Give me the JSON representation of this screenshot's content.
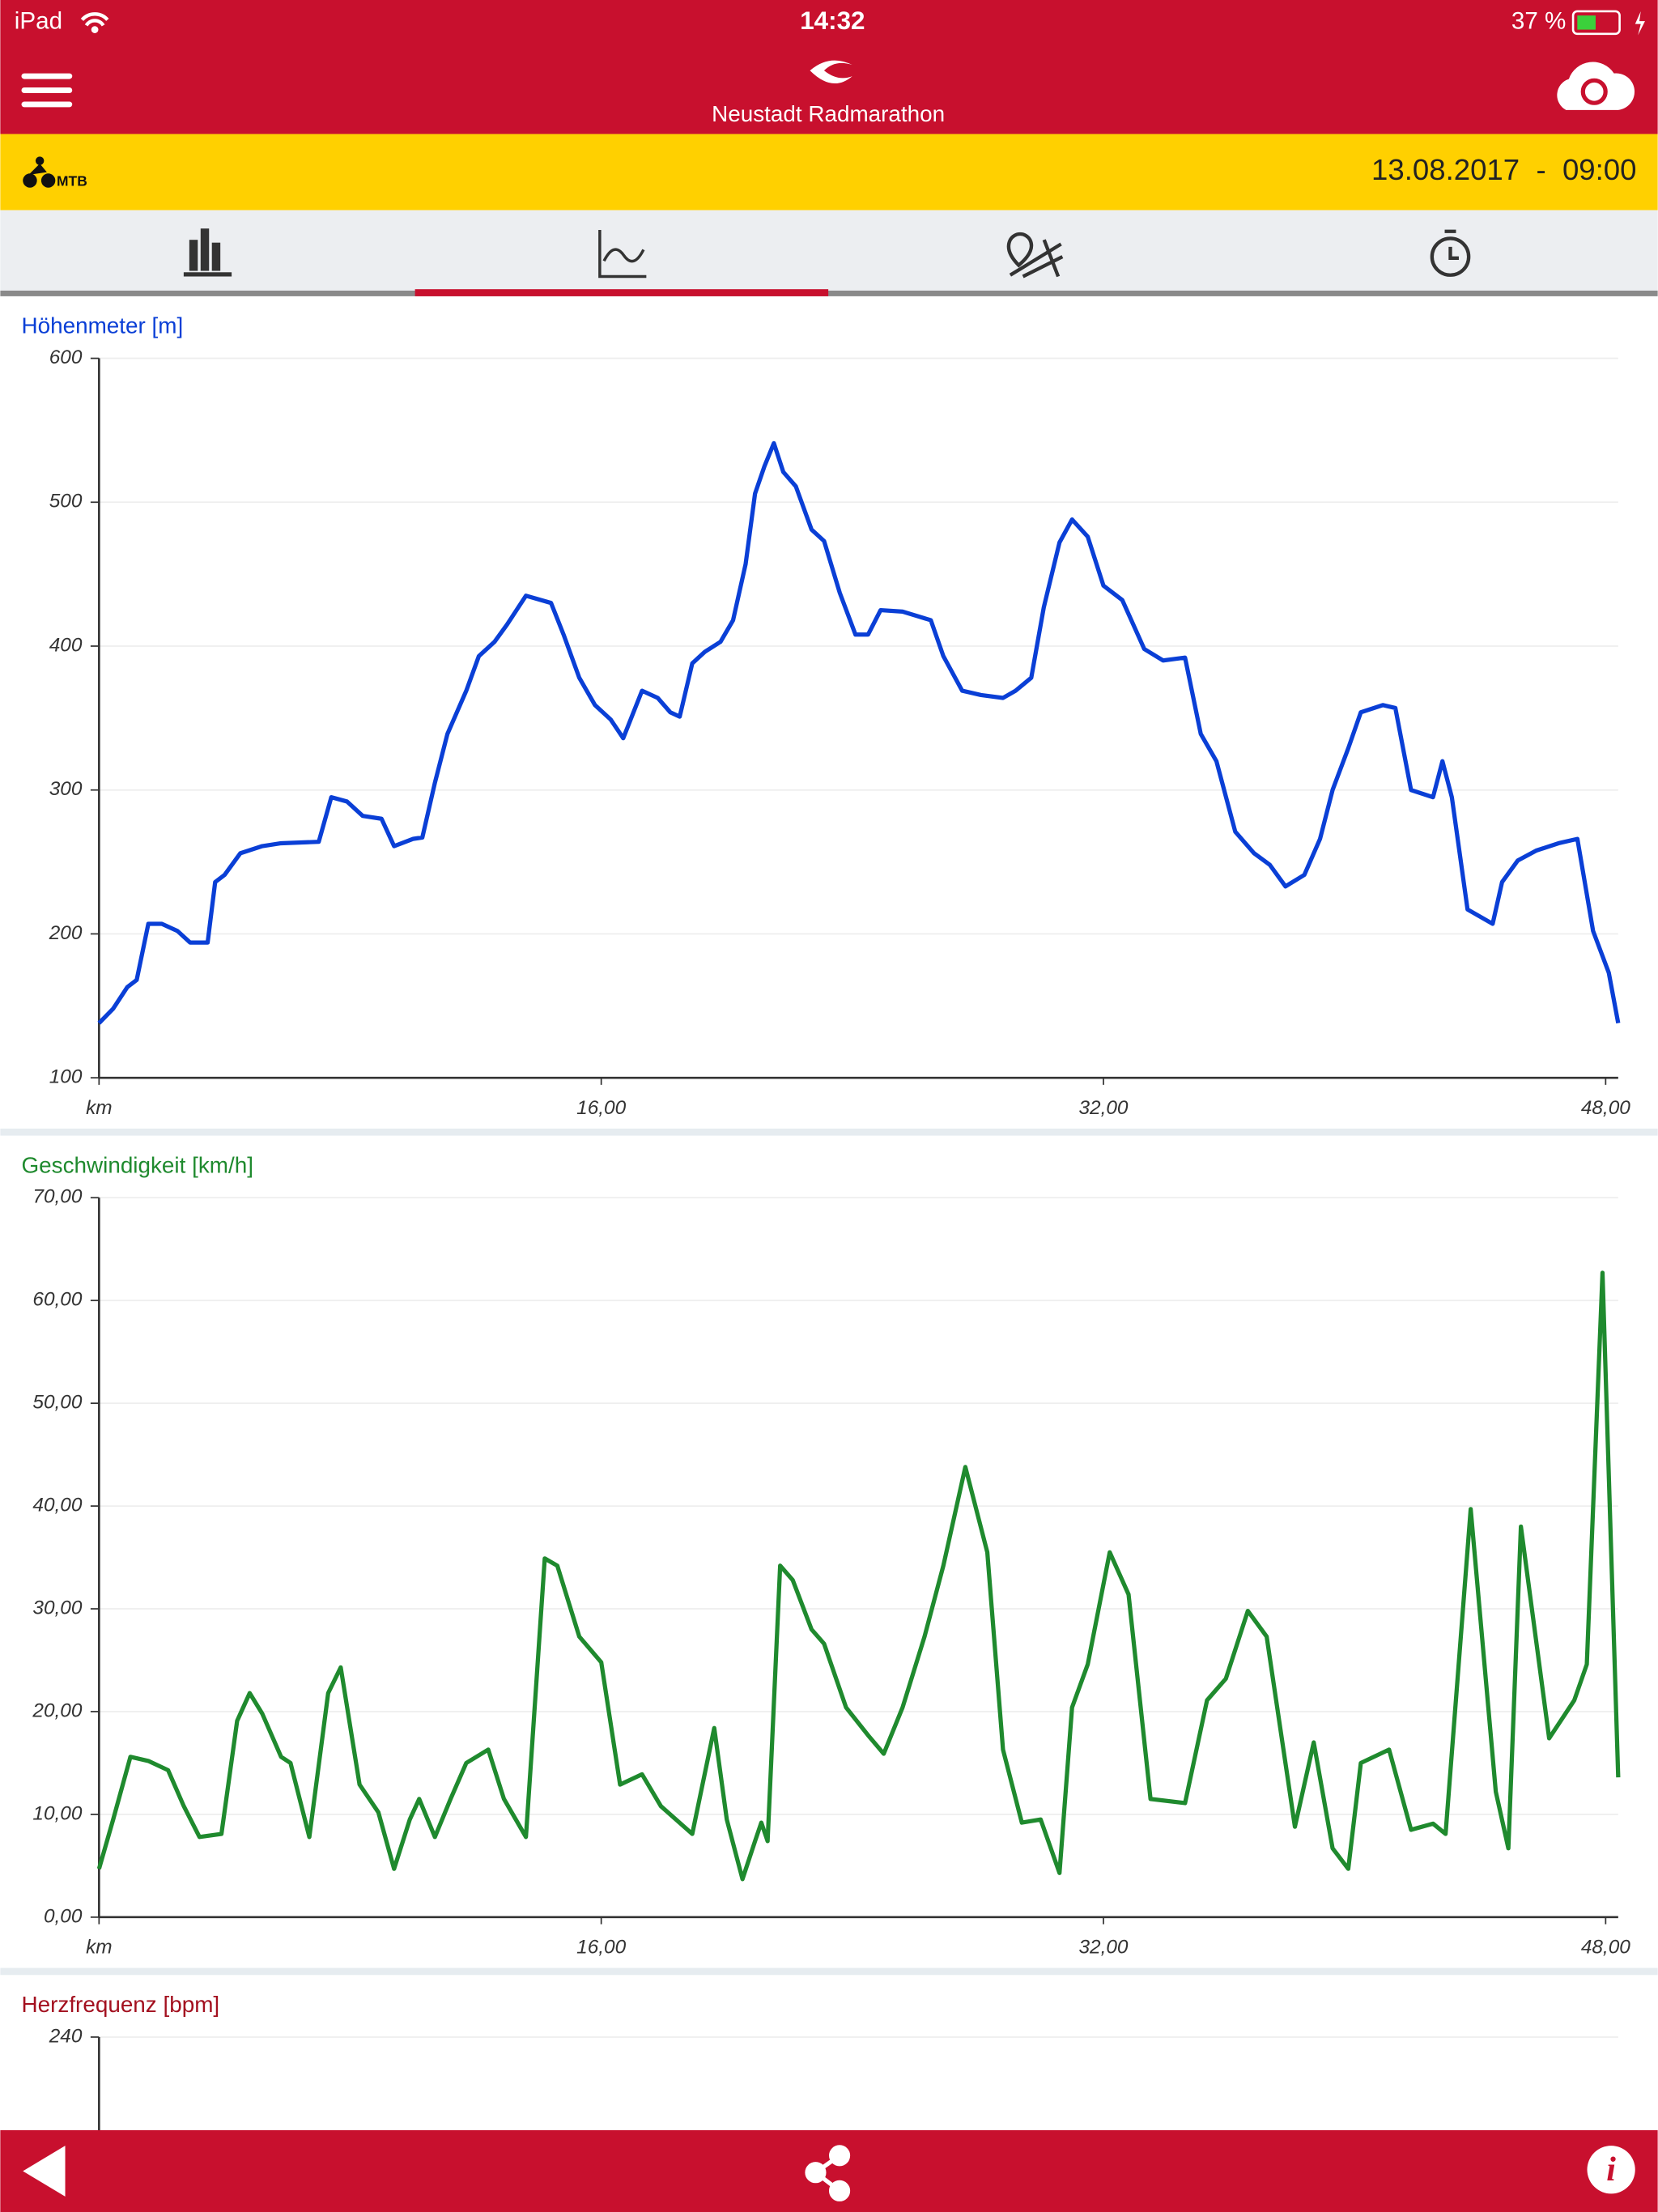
{
  "status_bar": {
    "device": "iPad",
    "time": "14:32",
    "battery": "37 %"
  },
  "header": {
    "title": "Neustadt Radmarathon"
  },
  "event_bar": {
    "category": "MTB",
    "datetime": "13.08.2017  -  09:00"
  },
  "chart_data": [
    {
      "type": "line",
      "title": "Höhenmeter [m]",
      "color": "#0a3fd6",
      "xlim": [
        0,
        48.4
      ],
      "xticks": [
        {
          "value": 0,
          "label": "km"
        },
        {
          "value": 16,
          "label": "16,00"
        },
        {
          "value": 32,
          "label": "32,00"
        },
        {
          "value": 48,
          "label": "48,00"
        }
      ],
      "ylim": [
        100,
        600
      ],
      "yticks": [
        100,
        200,
        300,
        400,
        500,
        600
      ],
      "grid": true,
      "x": [
        0,
        0.45,
        0.9,
        1.2,
        1.57,
        2.0,
        2.5,
        2.9,
        3.46,
        3.7,
        4.0,
        4.5,
        5.2,
        5.8,
        7.0,
        7.4,
        7.9,
        8.4,
        9.0,
        9.4,
        10.0,
        10.3,
        10.7,
        11.1,
        11.7,
        12.1,
        12.6,
        13.0,
        13.6,
        14.4,
        14.8,
        15.3,
        15.8,
        16.3,
        16.7,
        17.3,
        17.8,
        18.2,
        18.5,
        18.9,
        19.3,
        19.8,
        20.2,
        20.6,
        20.9,
        21.2,
        21.5,
        21.8,
        22.2,
        22.7,
        23.1,
        23.6,
        24.1,
        24.5,
        24.9,
        25.6,
        26.5,
        26.9,
        27.5,
        28.1,
        28.8,
        29.2,
        29.7,
        30.1,
        30.6,
        31.0,
        31.5,
        32.0,
        32.6,
        33.3,
        33.9,
        34.6,
        35.1,
        35.6,
        36.2,
        36.8,
        37.3,
        37.8,
        38.4,
        38.9,
        39.3,
        39.8,
        40.2,
        40.9,
        41.3,
        41.8,
        42.5,
        42.8,
        43.1,
        43.6,
        44.4,
        44.7,
        45.2,
        45.8,
        46.5,
        47.1,
        47.6,
        48.1,
        48.4
      ],
      "values": [
        138,
        148,
        163,
        168,
        207,
        207,
        202,
        194,
        194,
        236,
        241,
        256,
        261,
        263,
        264,
        295,
        292,
        282,
        280,
        261,
        266,
        267,
        305,
        339,
        369,
        393,
        403,
        415,
        435,
        430,
        408,
        378,
        359,
        349,
        336,
        369,
        364,
        354,
        351,
        388,
        396,
        403,
        418,
        457,
        506,
        525,
        541,
        521,
        511,
        481,
        473,
        437,
        408,
        408,
        425,
        424,
        418,
        393,
        369,
        366,
        364,
        369,
        378,
        427,
        472,
        488,
        476,
        442,
        432,
        398,
        390,
        392,
        339,
        320,
        271,
        256,
        248,
        233,
        241,
        266,
        300,
        329,
        354,
        359,
        357,
        300,
        295,
        320,
        295,
        217,
        207,
        236,
        251,
        258,
        263,
        266,
        202,
        173,
        138
      ]
    },
    {
      "type": "line",
      "title": "Geschwindigkeit [km/h]",
      "color": "#1f8a2e",
      "xlim": [
        0,
        48.4
      ],
      "xticks": [
        {
          "value": 0,
          "label": "km"
        },
        {
          "value": 16,
          "label": "16,00"
        },
        {
          "value": 32,
          "label": "32,00"
        },
        {
          "value": 48,
          "label": "48,00"
        }
      ],
      "ylim": [
        0,
        70
      ],
      "yticks": [
        {
          "value": 0,
          "label": "0,00"
        },
        {
          "value": 10,
          "label": "10,00"
        },
        {
          "value": 20,
          "label": "20,00"
        },
        {
          "value": 30,
          "label": "30,00"
        },
        {
          "value": 40,
          "label": "40,00"
        },
        {
          "value": 50,
          "label": "50,00"
        },
        {
          "value": 60,
          "label": "60,00"
        },
        {
          "value": 70,
          "label": "70,00"
        }
      ],
      "grid": true,
      "x": [
        0,
        0.45,
        1.0,
        1.57,
        2.2,
        2.7,
        3.2,
        3.9,
        4.4,
        4.8,
        5.2,
        5.8,
        6.1,
        6.7,
        7.3,
        7.7,
        8.3,
        8.9,
        9.4,
        9.9,
        10.2,
        10.7,
        11.2,
        11.7,
        12.4,
        12.9,
        13.6,
        14.2,
        14.6,
        15.3,
        16.0,
        16.6,
        17.3,
        17.9,
        18.9,
        19.6,
        20.0,
        20.5,
        20.9,
        21.1,
        21.3,
        21.7,
        22.1,
        22.7,
        23.1,
        23.8,
        24.5,
        25.0,
        25.6,
        26.3,
        26.9,
        27.6,
        28.3,
        28.8,
        29.4,
        30.0,
        30.6,
        31.0,
        31.5,
        32.2,
        32.8,
        33.5,
        34.6,
        35.3,
        35.9,
        36.6,
        37.2,
        38.1,
        38.7,
        39.3,
        39.8,
        40.2,
        41.1,
        41.8,
        42.5,
        42.9,
        43.7,
        44.5,
        44.9,
        45.3,
        46.2,
        47.0,
        47.4,
        47.9,
        48.4
      ],
      "values": [
        4.7,
        9.5,
        15.6,
        15.2,
        14.3,
        10.8,
        7.8,
        8.1,
        19.1,
        21.8,
        19.8,
        15.6,
        15.0,
        7.8,
        21.8,
        24.3,
        12.9,
        10.2,
        4.7,
        9.5,
        11.5,
        7.8,
        11.5,
        15.0,
        16.3,
        11.5,
        7.8,
        34.9,
        34.2,
        27.3,
        24.8,
        12.9,
        13.9,
        10.8,
        8.1,
        18.4,
        9.5,
        3.7,
        7.4,
        9.2,
        7.4,
        34.2,
        32.8,
        28.0,
        26.6,
        20.4,
        17.7,
        15.9,
        20.4,
        27.3,
        34.2,
        43.8,
        35.5,
        16.3,
        9.2,
        9.5,
        4.3,
        20.4,
        24.6,
        35.5,
        31.4,
        11.5,
        11.1,
        21.1,
        23.2,
        29.8,
        27.3,
        8.8,
        17.0,
        6.7,
        4.7,
        15.0,
        16.3,
        8.5,
        9.1,
        8.1,
        39.7,
        12.2,
        6.7,
        38.0,
        17.4,
        21.1,
        24.6,
        62.7,
        13.6
      ]
    },
    {
      "type": "line",
      "title": "Herzfrequenz [bpm]",
      "color": "#a3101f",
      "yticks": [
        240
      ],
      "grid": true
    }
  ]
}
